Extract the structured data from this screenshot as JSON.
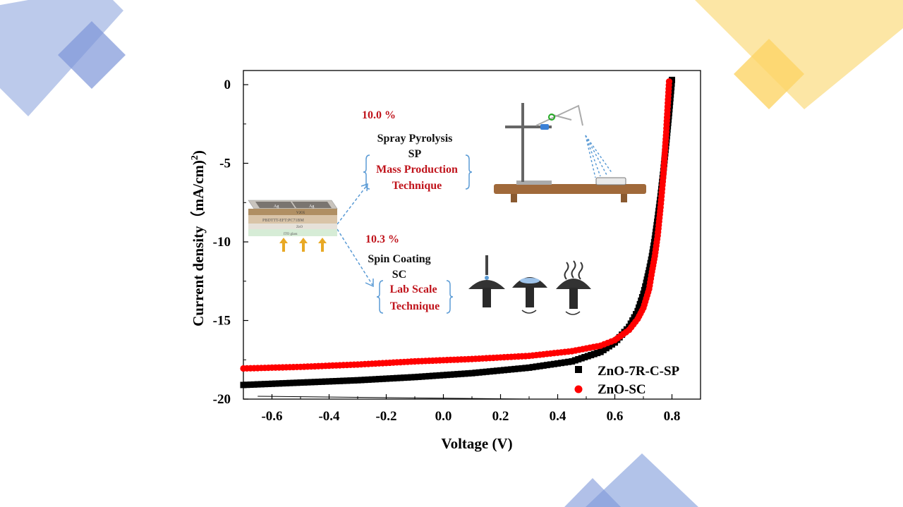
{
  "colors": {
    "deco_blue": "#9fb4e3",
    "deco_blue_dark": "#7d96d8",
    "deco_yellow": "#fbe08e",
    "deco_yellow_dark": "#fcd466",
    "series_black": "#000000",
    "series_red": "#ff0000",
    "annotation_red": "#c0141c",
    "arrow_blue": "#5b9bd5"
  },
  "chart_data": {
    "type": "scatter",
    "title": "",
    "xlabel": "Voltage (V)",
    "ylabel": "Current density（mA/cm)",
    "ylabel_superscript": "2",
    "ylabel_close": ")",
    "xlim": [
      -0.7,
      0.9
    ],
    "ylim": [
      -20,
      0.9
    ],
    "xticks": [
      -0.6,
      -0.4,
      -0.2,
      0.0,
      0.2,
      0.4,
      0.6,
      0.8
    ],
    "xtick_labels": [
      "-0.6",
      "-0.4",
      "-0.2",
      "0.0",
      "0.2",
      "0.4",
      "0.6",
      "0.8"
    ],
    "yticks": [
      0,
      -5,
      -10,
      -15,
      -20
    ],
    "ytick_labels": [
      "0",
      "-5",
      "-10",
      "-15",
      "-20"
    ],
    "grid": false,
    "legend_position": "bottom-right",
    "series": [
      {
        "name": "ZnO-7R-C-SP",
        "marker": "square",
        "color": "#000000",
        "points": [
          [
            -0.7,
            -19.1
          ],
          [
            -0.5,
            -18.95
          ],
          [
            -0.3,
            -18.8
          ],
          [
            -0.1,
            -18.6
          ],
          [
            0.1,
            -18.35
          ],
          [
            0.3,
            -18.0
          ],
          [
            0.45,
            -17.6
          ],
          [
            0.55,
            -17.0
          ],
          [
            0.6,
            -16.4
          ],
          [
            0.65,
            -15.4
          ],
          [
            0.68,
            -14.4
          ],
          [
            0.7,
            -13.3
          ],
          [
            0.71,
            -12.6
          ],
          [
            0.72,
            -11.8
          ],
          [
            0.73,
            -10.9
          ],
          [
            0.74,
            -9.8
          ],
          [
            0.75,
            -8.5
          ],
          [
            0.76,
            -7.1
          ],
          [
            0.77,
            -5.5
          ],
          [
            0.78,
            -3.7
          ],
          [
            0.79,
            -1.8
          ],
          [
            0.8,
            0.3
          ]
        ]
      },
      {
        "name": "ZnO-SC",
        "marker": "circle",
        "color": "#ff0000",
        "points": [
          [
            -0.7,
            -18.05
          ],
          [
            -0.5,
            -17.95
          ],
          [
            -0.3,
            -17.8
          ],
          [
            -0.1,
            -17.6
          ],
          [
            0.1,
            -17.45
          ],
          [
            0.3,
            -17.25
          ],
          [
            0.45,
            -16.95
          ],
          [
            0.55,
            -16.6
          ],
          [
            0.6,
            -16.25
          ],
          [
            0.65,
            -15.6
          ],
          [
            0.68,
            -14.9
          ],
          [
            0.7,
            -14.2
          ],
          [
            0.72,
            -13.0
          ],
          [
            0.73,
            -11.9
          ],
          [
            0.74,
            -10.9
          ],
          [
            0.75,
            -9.6
          ],
          [
            0.76,
            -7.8
          ],
          [
            0.77,
            -5.7
          ],
          [
            0.78,
            -3.0
          ],
          [
            0.79,
            0.2
          ]
        ]
      }
    ],
    "annotations": {
      "sp_efficiency": "10.0 %",
      "sp_method": "Spray Pyrolysis",
      "sp_abbr": "SP",
      "sp_desc_line1": "Mass Production",
      "sp_desc_line2": "Technique",
      "sc_efficiency": "10.3 %",
      "sc_method": "Spin Coating",
      "sc_abbr": "SC",
      "sc_desc_line1": "Lab Scale",
      "sc_desc_line2": "Technique",
      "device_labels": [
        "Ag",
        "Ag",
        "V2O5",
        "PBDTTT-EFT:PC71BM",
        "ZnO",
        "ITO glass"
      ]
    }
  }
}
